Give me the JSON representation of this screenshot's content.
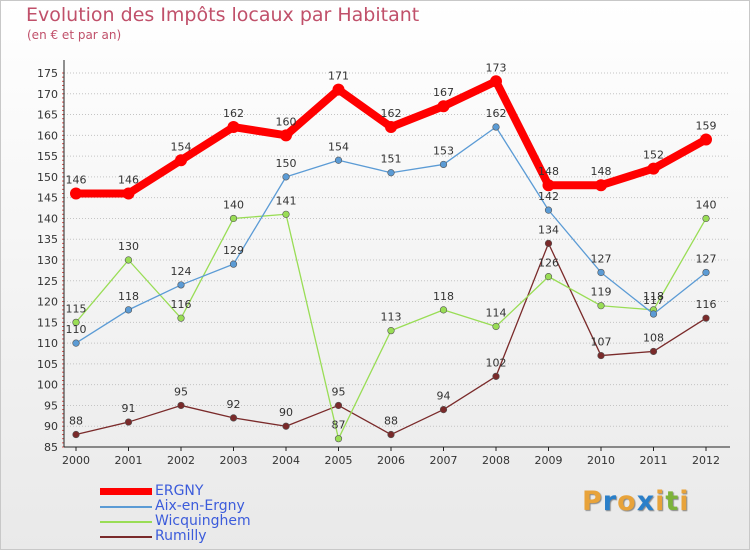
{
  "header": {
    "title": "Evolution des Impôts locaux par Habitant",
    "subtitle": "(en € et par an)"
  },
  "logo": {
    "letters": [
      "P",
      "r",
      "o",
      "x",
      "i",
      "t",
      "i"
    ],
    "colors": [
      "#e8a33a",
      "#2a7fc9",
      "#e8a33a",
      "#2a7fc9",
      "#e8a33a",
      "#7db33a",
      "#e8a33a"
    ]
  },
  "chart_data": {
    "type": "line",
    "title": "Evolution des Impôts locaux par Habitant",
    "subtitle": "(en € et par an)",
    "xlabel": "",
    "ylabel": "",
    "x": [
      "2000",
      "2001",
      "2002",
      "2003",
      "2004",
      "2005",
      "2006",
      "2007",
      "2008",
      "2009",
      "2010",
      "2011",
      "2012"
    ],
    "ylim": [
      85,
      175
    ],
    "yticks": [
      85,
      90,
      95,
      100,
      105,
      110,
      115,
      120,
      125,
      130,
      135,
      140,
      145,
      150,
      155,
      160,
      165,
      170,
      175
    ],
    "grid": "horizontal",
    "legend_position": "bottom-left",
    "series": [
      {
        "name": "ERGNY",
        "color": "#ff0000",
        "values": [
          146,
          146,
          154,
          162,
          160,
          171,
          162,
          167,
          173,
          148,
          148,
          152,
          159
        ]
      },
      {
        "name": "Aix-en-Ergny",
        "color": "#5b9bd5",
        "values": [
          110,
          118,
          124,
          129,
          150,
          154,
          151,
          153,
          162,
          142,
          127,
          117,
          127
        ]
      },
      {
        "name": "Wicquinghem",
        "color": "#99dd55",
        "values": [
          115,
          130,
          116,
          140,
          141,
          87,
          113,
          118,
          114,
          126,
          119,
          118,
          140
        ]
      },
      {
        "name": "Rumilly",
        "color": "#7a2a2a",
        "values": [
          88,
          91,
          95,
          92,
          90,
          95,
          88,
          94,
          102,
          134,
          107,
          108,
          116
        ]
      }
    ]
  }
}
